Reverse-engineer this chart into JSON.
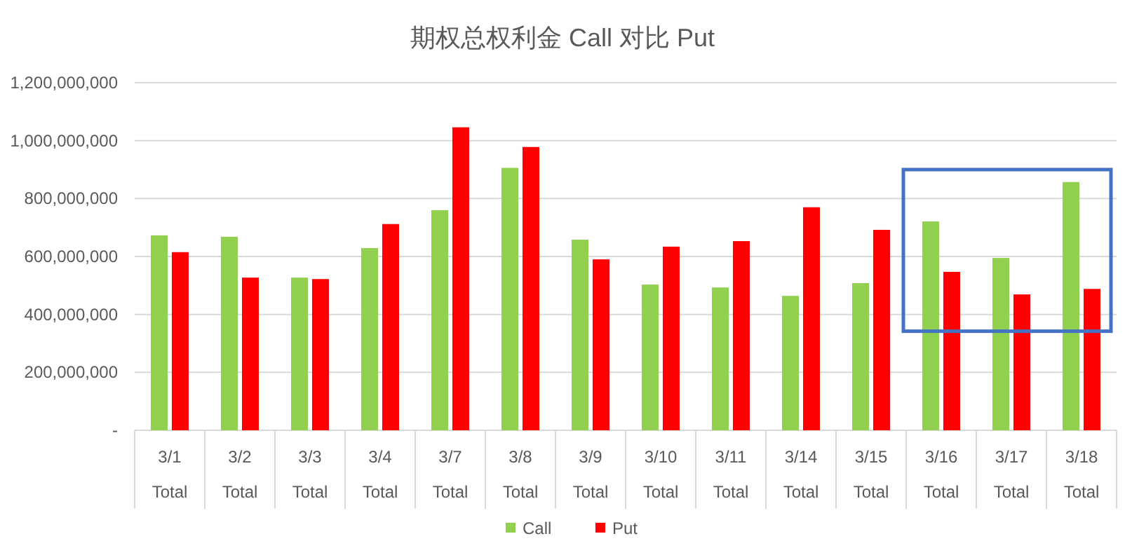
{
  "chart_data": {
    "type": "bar",
    "title": "期权总权利金 Call 对比 Put",
    "categories": [
      "3/1\nTotal",
      "3/2\nTotal",
      "3/3\nTotal",
      "3/4\nTotal",
      "3/7\nTotal",
      "3/8\nTotal",
      "3/9\nTotal",
      "3/10\nTotal",
      "3/11\nTotal",
      "3/14\nTotal",
      "3/15\nTotal",
      "3/16\nTotal",
      "3/17\nTotal",
      "3/18\nTotal"
    ],
    "series": [
      {
        "name": "Call",
        "color": "#92d050",
        "values": [
          673000000,
          668000000,
          527000000,
          629000000,
          760000000,
          906000000,
          658000000,
          503000000,
          493000000,
          464000000,
          508000000,
          721000000,
          595000000,
          857000000
        ]
      },
      {
        "name": "Put",
        "color": "#ff0000",
        "values": [
          615000000,
          527000000,
          522000000,
          712000000,
          1046000000,
          978000000,
          590000000,
          634000000,
          653000000,
          770000000,
          692000000,
          547000000,
          469000000,
          488000000
        ]
      }
    ],
    "ylim": [
      0,
      1200000000
    ],
    "yticks": [
      {
        "value": 0,
        "label": "-"
      },
      {
        "value": 200000000,
        "label": "200,000,000"
      },
      {
        "value": 400000000,
        "label": "400,000,000"
      },
      {
        "value": 600000000,
        "label": "600,000,000"
      },
      {
        "value": 800000000,
        "label": "800,000,000"
      },
      {
        "value": 1000000000,
        "label": "1,000,000,000"
      },
      {
        "value": 1200000000,
        "label": "1,200,000,000"
      }
    ],
    "grid": "y",
    "legend": "bottom"
  }
}
